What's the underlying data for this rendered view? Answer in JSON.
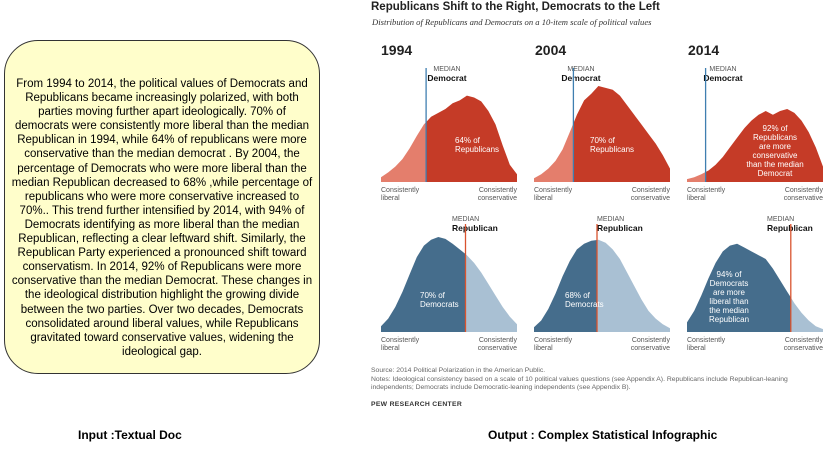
{
  "input_text": "From 1994 to 2014, the political values of Democrats and Republicans became increasingly polarized, with both parties moving further apart ideologically.   70% of democrats were consistently more liberal than the median Republican in 1994, while 64%  of republicans were more conservative than the median democrat . By 2004, the percentage of Democrats who were more liberal than the median Republican decreased to 68% ,while percentage of republicans who were more conservative increased to 70%.. This trend further intensified by 2014, with 94% of Democrats identifying as more liberal than the median Republican, reflecting a clear leftward shift. Similarly, the Republican Party experienced a pronounced shift toward conservatism. In  2014, 92% of Republicans were more conservative than the median Democrat. These changes in the ideological distribution highlight the growing divide between the two parties. Over two decades, Democrats consolidated around liberal values, while Republicans gravitated toward conservative values, widening the ideological gap.",
  "input_caption": "Input :Textual Doc",
  "output_caption": "Output : Complex Statistical Infographic",
  "infographic": {
    "title": "Republicans Shift to the Right, Democrats to the Left",
    "subtitle": "Distribution of Republicans and Democrats on a 10-item scale of political values",
    "axis_left": "Consistently liberal",
    "axis_right": "Consistently conservative",
    "median_small": "MEDIAN",
    "median_dem": "Democrat",
    "median_rep": "Republican",
    "source": "Source: 2014 Political Polarization in the American Public.",
    "notes": "Notes: Ideological consistency based on a scale of 10 political values questions (see Appendix A). Republicans include Republican-leaning independents; Democrats include Democratic-leaning independents (see Appendix B).",
    "org": "PEW RESEARCH CENTER",
    "colors": {
      "rep_dark": "#c53b27",
      "rep_light": "#e47e6c",
      "dem_dark": "#456d8c",
      "dem_light": "#a9c0d3",
      "median_dem_line": "#3f7fb0",
      "median_rep_line": "#d9532e"
    }
  },
  "chart_data": [
    {
      "type": "area",
      "year": "1994",
      "party": "Republicans",
      "median_of": "Democrat",
      "x": [
        1,
        2,
        3,
        4,
        5,
        6,
        7,
        8,
        9,
        10,
        11,
        12,
        13,
        14,
        15,
        16,
        17,
        18,
        19,
        20
      ],
      "values": [
        5,
        10,
        16,
        24,
        35,
        48,
        60,
        68,
        72,
        76,
        82,
        85,
        90,
        88,
        84,
        74,
        60,
        38,
        18,
        8
      ],
      "median_index": 7.3,
      "pct_value": 64,
      "pct_text": "64% of",
      "pct_text2": "Republicans"
    },
    {
      "type": "area",
      "year": "2004",
      "party": "Republicans",
      "median_of": "Democrat",
      "x": [
        1,
        2,
        3,
        4,
        5,
        6,
        7,
        8,
        9,
        10,
        11,
        12,
        13,
        14,
        15,
        16,
        17,
        18,
        19,
        20
      ],
      "values": [
        4,
        8,
        14,
        22,
        34,
        52,
        70,
        85,
        92,
        100,
        98,
        96,
        90,
        80,
        70,
        60,
        50,
        40,
        28,
        14
      ],
      "median_index": 6.5,
      "pct_value": 70,
      "pct_text": "70% of",
      "pct_text2": "Republicans"
    },
    {
      "type": "area",
      "year": "2014",
      "party": "Republicans",
      "median_of": "Democrat",
      "x": [
        1,
        2,
        3,
        4,
        5,
        6,
        7,
        8,
        9,
        10,
        11,
        12,
        13,
        14,
        15,
        16,
        17,
        18,
        19,
        20
      ],
      "values": [
        3,
        5,
        8,
        12,
        18,
        26,
        36,
        46,
        56,
        64,
        70,
        74,
        70,
        74,
        76,
        72,
        64,
        52,
        36,
        16
      ],
      "median_index": 3.6,
      "pct_value": 92,
      "pct_lines": [
        "92% of",
        "Republicans",
        "are more",
        "conservative",
        "than the median",
        "Democrat"
      ]
    },
    {
      "type": "area",
      "year": "1994",
      "party": "Democrats",
      "median_of": "Republican",
      "x": [
        1,
        2,
        3,
        4,
        5,
        6,
        7,
        8,
        9,
        10,
        11,
        12,
        13,
        14,
        15,
        16,
        17,
        18,
        19,
        20
      ],
      "values": [
        6,
        14,
        26,
        42,
        60,
        78,
        90,
        96,
        99,
        97,
        92,
        86,
        80,
        72,
        62,
        50,
        38,
        26,
        16,
        8
      ],
      "median_index": 12.8,
      "pct_value": 70,
      "pct_text": "70% of",
      "pct_text2": "Democrats"
    },
    {
      "type": "area",
      "year": "2004",
      "party": "Democrats",
      "median_of": "Republican",
      "x": [
        1,
        2,
        3,
        4,
        5,
        6,
        7,
        8,
        9,
        10,
        11,
        12,
        13,
        14,
        15,
        16,
        17,
        18,
        19,
        20
      ],
      "values": [
        5,
        12,
        24,
        40,
        58,
        74,
        86,
        92,
        95,
        96,
        93,
        86,
        76,
        62,
        48,
        34,
        22,
        14,
        8,
        4
      ],
      "median_index": 9.8,
      "pct_value": 68,
      "pct_text": "68% of",
      "pct_text2": "Democrats"
    },
    {
      "type": "area",
      "year": "2014",
      "party": "Democrats",
      "median_of": "Republican",
      "x": [
        1,
        2,
        3,
        4,
        5,
        6,
        7,
        8,
        9,
        10,
        11,
        12,
        13,
        14,
        15,
        16,
        17,
        18,
        19,
        20
      ],
      "values": [
        10,
        22,
        38,
        56,
        72,
        84,
        90,
        92,
        88,
        84,
        80,
        76,
        66,
        54,
        42,
        30,
        20,
        12,
        6,
        3
      ],
      "median_index": 15.5,
      "pct_value": 94,
      "pct_lines": [
        "94% of",
        "Democrats",
        "are more",
        "liberal than",
        "the median",
        "Republican"
      ]
    }
  ]
}
